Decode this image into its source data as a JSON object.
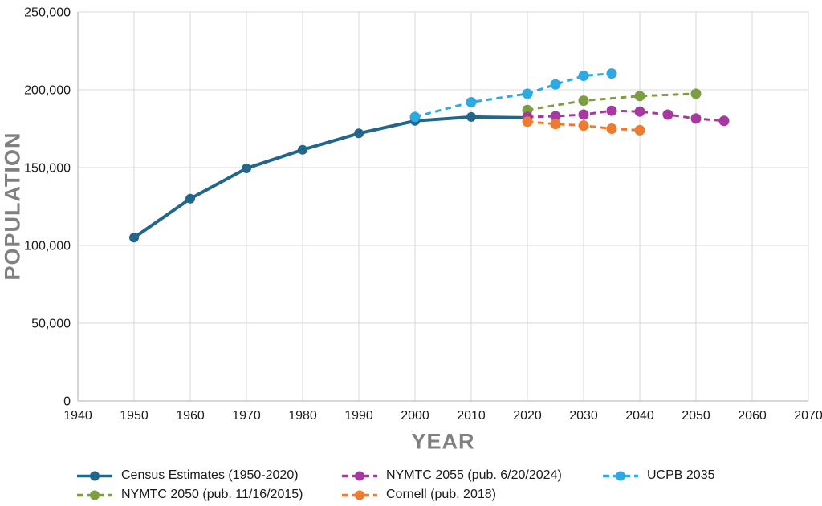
{
  "chart_data": {
    "type": "line",
    "title": "",
    "xlabel": "YEAR",
    "ylabel": "POPULATION",
    "xlim": [
      1940,
      2070
    ],
    "ylim": [
      0,
      250000
    ],
    "x_ticks": [
      1940,
      1950,
      1960,
      1970,
      1980,
      1990,
      2000,
      2010,
      2020,
      2030,
      2040,
      2050,
      2060,
      2070
    ],
    "y_ticks": [
      0,
      50000,
      100000,
      150000,
      200000,
      250000
    ],
    "y_tick_labels": [
      "0",
      "50,000",
      "100,000",
      "150,000",
      "200,000",
      "250,000"
    ],
    "grid": true,
    "legend_position": "bottom",
    "series": [
      {
        "key": "census",
        "name": "Census Estimates (1950-2020)",
        "color": "#226789",
        "style": "solid",
        "points": [
          [
            1950,
            105000
          ],
          [
            1960,
            130000
          ],
          [
            1970,
            149500
          ],
          [
            1980,
            161500
          ],
          [
            1990,
            172000
          ],
          [
            2000,
            180000
          ],
          [
            2010,
            182500
          ],
          [
            2020,
            182000
          ]
        ]
      },
      {
        "key": "ucpb2035",
        "name": "UCPB 2035",
        "color": "#2FA9E1",
        "style": "dashed",
        "points": [
          [
            2000,
            182500
          ],
          [
            2010,
            192000
          ],
          [
            2020,
            197500
          ],
          [
            2025,
            203500
          ],
          [
            2030,
            209000
          ],
          [
            2035,
            210500
          ]
        ]
      },
      {
        "key": "nymtc2050",
        "name": "NYMTC 2050 (pub. 11/16/2015)",
        "color": "#7C9D40",
        "style": "dashed",
        "points": [
          [
            2020,
            187000
          ],
          [
            2030,
            193000
          ],
          [
            2040,
            196000
          ],
          [
            2050,
            197500
          ]
        ]
      },
      {
        "key": "nymtc2055",
        "name": "NYMTC 2055 (pub. 6/20/2024)",
        "color": "#A43A9F",
        "style": "dashed",
        "points": [
          [
            2020,
            182500
          ],
          [
            2025,
            183000
          ],
          [
            2030,
            184000
          ],
          [
            2035,
            186500
          ],
          [
            2040,
            186000
          ],
          [
            2045,
            184000
          ],
          [
            2050,
            181500
          ],
          [
            2055,
            180000
          ]
        ]
      },
      {
        "key": "cornell",
        "name": "Cornell (pub. 2018)",
        "color": "#EC7C30",
        "style": "dashed",
        "points": [
          [
            2020,
            179500
          ],
          [
            2025,
            178000
          ],
          [
            2030,
            177000
          ],
          [
            2035,
            175000
          ],
          [
            2040,
            174000
          ]
        ]
      }
    ]
  },
  "axes": {
    "x_title": "YEAR",
    "y_title": "POPULATION"
  },
  "legend": {
    "items": [
      {
        "label": "Census Estimates (1950-2020)",
        "series_key": "census"
      },
      {
        "label": "NYMTC 2055 (pub. 6/20/2024)",
        "series_key": "nymtc2055"
      },
      {
        "label": "UCPB 2035",
        "series_key": "ucpb2035"
      },
      {
        "label": "NYMTC 2050 (pub. 11/16/2015)",
        "series_key": "nymtc2050"
      },
      {
        "label": "Cornell (pub. 2018)",
        "series_key": "cornell"
      }
    ]
  },
  "colors": {
    "grid": "#d9d9d9",
    "axis": "#bfbfbf",
    "tick_text": "#1a1a1a",
    "axis_title": "#808080",
    "background": "#ffffff"
  }
}
